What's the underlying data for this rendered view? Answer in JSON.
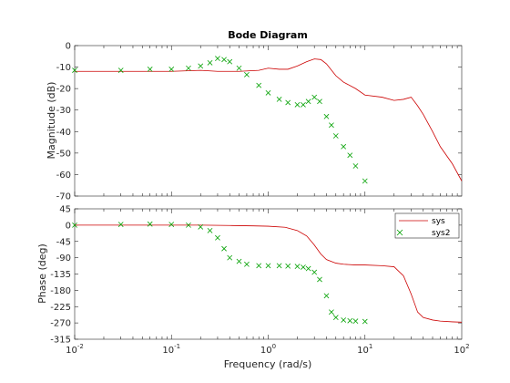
{
  "chart_data": [
    {
      "type": "line",
      "title": "Bode Diagram",
      "ylabel": "Magnitude (dB)",
      "xlabel": "",
      "xscale": "log",
      "xlim": [
        0.01,
        100
      ],
      "ylim": [
        -70,
        0
      ],
      "yticks": [
        0,
        -10,
        -20,
        -30,
        -40,
        -50,
        -60,
        -70
      ],
      "xticklabels_shown": false,
      "grid": false,
      "series": [
        {
          "name": "sys",
          "color": "#cc0000",
          "marker": "none",
          "x": [
            0.01,
            0.03,
            0.1,
            0.2,
            0.3,
            0.5,
            0.8,
            1,
            1.3,
            1.6,
            2,
            2.5,
            3,
            3.5,
            4,
            5,
            6,
            8,
            10,
            15,
            20,
            25,
            30,
            35,
            40,
            50,
            60,
            80,
            100
          ],
          "values": [
            -12,
            -12,
            -12,
            -11.5,
            -12,
            -12,
            -11.5,
            -10.5,
            -11,
            -11,
            -9.5,
            -7.5,
            -6.2,
            -6.5,
            -8.5,
            -14,
            -17,
            -20,
            -23,
            -24,
            -25.5,
            -25,
            -24,
            -28,
            -32,
            -40,
            -47,
            -55,
            -63
          ]
        },
        {
          "name": "sys2",
          "color": "#00a000",
          "marker": "x",
          "x": [
            0.01,
            0.03,
            0.06,
            0.1,
            0.15,
            0.2,
            0.25,
            0.3,
            0.35,
            0.4,
            0.5,
            0.6,
            0.8,
            1,
            1.3,
            1.6,
            2,
            2.3,
            2.6,
            3,
            3.4,
            4,
            4.5,
            5,
            6,
            7,
            8,
            10
          ],
          "values": [
            -11.5,
            -11.5,
            -11,
            -11,
            -10.5,
            -9.5,
            -8,
            -6,
            -6.5,
            -7.5,
            -10.5,
            -13.5,
            -18.5,
            -22,
            -25,
            -26.5,
            -27.5,
            -27.5,
            -26,
            -24,
            -26,
            -33,
            -37,
            -42,
            -47,
            -51,
            -56,
            -63
          ]
        }
      ]
    },
    {
      "type": "line",
      "title": "",
      "ylabel": "Phase (deg)",
      "xlabel": "Frequency  (rad/s)",
      "xscale": "log",
      "xlim": [
        0.01,
        100
      ],
      "xtick_values": [
        0.01,
        0.1,
        1,
        10,
        100
      ],
      "ylim": [
        -315,
        45
      ],
      "yticks": [
        45,
        0,
        -45,
        -90,
        -135,
        -180,
        -225,
        -270,
        -315
      ],
      "grid": false,
      "legend_position": "top-right",
      "series": [
        {
          "name": "sys",
          "color": "#cc0000",
          "marker": "none",
          "x": [
            0.01,
            0.05,
            0.1,
            0.2,
            0.4,
            0.7,
            1,
            1.5,
            2,
            2.5,
            3,
            3.5,
            4,
            5,
            6,
            8,
            10,
            15,
            20,
            25,
            30,
            35,
            40,
            50,
            60,
            80,
            100
          ],
          "values": [
            0,
            0,
            0,
            0,
            -1,
            -2,
            -3,
            -6,
            -15,
            -30,
            -55,
            -80,
            -95,
            -105,
            -108,
            -110,
            -110,
            -112,
            -115,
            -140,
            -190,
            -240,
            -255,
            -262,
            -265,
            -267,
            -268
          ]
        },
        {
          "name": "sys2",
          "color": "#00a000",
          "marker": "x",
          "x": [
            0.01,
            0.03,
            0.06,
            0.1,
            0.15,
            0.2,
            0.25,
            0.3,
            0.35,
            0.4,
            0.5,
            0.6,
            0.8,
            1,
            1.3,
            1.6,
            2,
            2.3,
            2.6,
            3,
            3.4,
            4,
            4.5,
            5,
            6,
            7,
            8,
            10
          ],
          "values": [
            0,
            2,
            3,
            2,
            0,
            -5,
            -15,
            -35,
            -65,
            -90,
            -100,
            -108,
            -112,
            -112,
            -112,
            -113,
            -114,
            -116,
            -120,
            -130,
            -150,
            -195,
            -240,
            -255,
            -262,
            -264,
            -265,
            -266
          ]
        }
      ]
    }
  ]
}
